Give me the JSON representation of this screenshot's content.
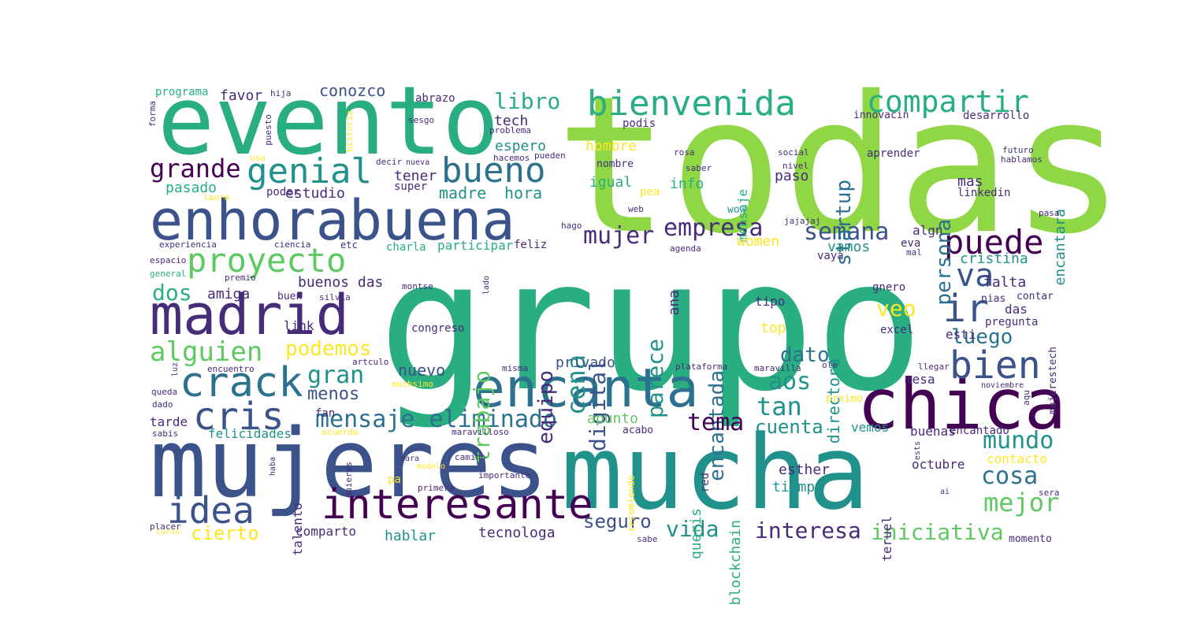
{
  "palette": {
    "purple": "#440154",
    "indigo": "#472c7a",
    "blue": "#3b528b",
    "steel": "#2c728e",
    "teal": "#21918c",
    "sea": "#28ae80",
    "green": "#5ec962",
    "lime": "#8fd744",
    "yellow": "#fde725"
  },
  "words": [
    {
      "text": "grupo",
      "size": "xxxl",
      "color": "sea"
    },
    {
      "text": "todas",
      "size": "xxxl",
      "color": "lime"
    },
    {
      "text": "mujeres",
      "size": "xxl",
      "color": "blue"
    },
    {
      "text": "mucha",
      "size": "xxl",
      "color": "teal"
    },
    {
      "text": "evento",
      "size": "xl",
      "color": "sea"
    },
    {
      "text": "enhorabuena",
      "size": "l",
      "color": "blue"
    },
    {
      "text": "encanta",
      "size": "l",
      "color": "steel"
    },
    {
      "text": "chica",
      "size": "l",
      "color": "purple"
    },
    {
      "text": "madrid",
      "size": "l",
      "color": "indigo"
    },
    {
      "text": "proyecto",
      "size": "m",
      "color": "green"
    },
    {
      "text": "bienvenida",
      "size": "m",
      "color": "sea"
    },
    {
      "text": "interesante",
      "size": "m",
      "color": "purple"
    },
    {
      "text": "crack",
      "size": "m",
      "color": "steel"
    },
    {
      "text": "cris",
      "size": "m",
      "color": "blue"
    },
    {
      "text": "idea",
      "size": "m",
      "color": "blue"
    },
    {
      "text": "bien",
      "size": "m",
      "color": "blue"
    },
    {
      "text": "genial",
      "size": "m",
      "color": "teal"
    },
    {
      "text": "bueno",
      "size": "m",
      "color": "steel"
    },
    {
      "text": "compartir",
      "size": "m",
      "color": "sea"
    },
    {
      "text": "puede",
      "size": "m",
      "color": "purple"
    },
    {
      "text": "ir",
      "size": "m",
      "color": "blue"
    },
    {
      "text": "va",
      "size": "m",
      "color": "blue"
    },
    {
      "text": "alguien",
      "size": "s",
      "color": "green"
    },
    {
      "text": "mensaje eliminado",
      "size": "s",
      "color": "steel"
    },
    {
      "text": "grande",
      "size": "s",
      "color": "purple"
    },
    {
      "text": "semana",
      "size": "s",
      "color": "blue"
    },
    {
      "text": "empresa",
      "size": "s",
      "color": "indigo"
    },
    {
      "text": "mujer",
      "size": "s",
      "color": "indigo"
    },
    {
      "text": "libro",
      "size": "s",
      "color": "sea"
    },
    {
      "text": "persona",
      "size": "s",
      "color": "steel"
    },
    {
      "text": "trabajo",
      "size": "s",
      "color": "green"
    },
    {
      "text": "cena",
      "size": "s",
      "color": "teal"
    },
    {
      "text": "digital",
      "size": "s",
      "color": "blue"
    },
    {
      "text": "equipo",
      "size": "s",
      "color": "indigo"
    },
    {
      "text": "parece",
      "size": "s",
      "color": "teal"
    },
    {
      "text": "encantada",
      "size": "s",
      "color": "steel"
    },
    {
      "text": "startup",
      "size": "s",
      "color": "steel"
    },
    {
      "text": "mundo",
      "size": "s",
      "color": "teal"
    },
    {
      "text": "cosa",
      "size": "s",
      "color": "steel"
    },
    {
      "text": "mejor",
      "size": "s",
      "color": "green"
    },
    {
      "text": "tema",
      "size": "s",
      "color": "purple"
    },
    {
      "text": "vida",
      "size": "s",
      "color": "teal"
    },
    {
      "text": "gran",
      "size": "s",
      "color": "teal"
    },
    {
      "text": "tan",
      "size": "s",
      "color": "teal"
    },
    {
      "text": "aos",
      "size": "s",
      "color": "teal"
    },
    {
      "text": "dato",
      "size": "s",
      "color": "steel"
    },
    {
      "text": "luego",
      "size": "s",
      "color": "steel"
    },
    {
      "text": "veo",
      "size": "s",
      "color": "yellow"
    },
    {
      "text": "podemos",
      "size": "s",
      "color": "yellow"
    },
    {
      "text": "dos",
      "size": "s",
      "color": "sea"
    },
    {
      "text": "interesa",
      "size": "s",
      "color": "indigo"
    },
    {
      "text": "iniciativa",
      "size": "s",
      "color": "green"
    },
    {
      "text": "seguro",
      "size": "s",
      "color": "blue"
    },
    {
      "text": "cierto",
      "size": "s",
      "color": "yellow"
    },
    {
      "text": "cuenta",
      "size": "s",
      "color": "teal"
    },
    {
      "text": "menos",
      "size": "xs",
      "color": "blue"
    },
    {
      "text": "nuevo",
      "size": "xs",
      "color": "blue"
    },
    {
      "text": "conozco",
      "size": "xs",
      "color": "blue"
    },
    {
      "text": "favor",
      "size": "xs",
      "color": "indigo"
    },
    {
      "text": "pasado",
      "size": "xs",
      "color": "sea"
    },
    {
      "text": "estudio",
      "size": "xs",
      "color": "indigo"
    },
    {
      "text": "madre",
      "size": "xs",
      "color": "teal"
    },
    {
      "text": "hora",
      "size": "xs",
      "color": "teal"
    },
    {
      "text": "tener",
      "size": "xs",
      "color": "indigo"
    },
    {
      "text": "tech",
      "size": "xs",
      "color": "indigo"
    },
    {
      "text": "espero",
      "size": "xs",
      "color": "teal"
    },
    {
      "text": "hombre",
      "size": "xs",
      "color": "yellow"
    },
    {
      "text": "igual",
      "size": "xs",
      "color": "sea"
    },
    {
      "text": "info",
      "size": "xs",
      "color": "sea"
    },
    {
      "text": "mensaje",
      "size": "xs",
      "color": "sea"
    },
    {
      "text": "paso",
      "size": "xs",
      "color": "indigo"
    },
    {
      "text": "mas",
      "size": "xs",
      "color": "indigo"
    },
    {
      "text": "encantara",
      "size": "xs",
      "color": "teal"
    },
    {
      "text": "women",
      "size": "xs",
      "color": "yellow"
    },
    {
      "text": "vamos",
      "size": "xs",
      "color": "teal"
    },
    {
      "text": "algn",
      "size": "xs",
      "color": "indigo"
    },
    {
      "text": "cristina",
      "size": "xs",
      "color": "teal"
    },
    {
      "text": "ana",
      "size": "xs",
      "color": "indigo"
    },
    {
      "text": "directora",
      "size": "xs",
      "color": "teal"
    },
    {
      "text": "falta",
      "size": "xs",
      "color": "indigo"
    },
    {
      "text": "das",
      "size": "xs",
      "color": "indigo"
    },
    {
      "text": "esti",
      "size": "xs",
      "color": "indigo"
    },
    {
      "text": "buenos das",
      "size": "xs",
      "color": "indigo"
    },
    {
      "text": "amiga",
      "size": "xs",
      "color": "indigo"
    },
    {
      "text": "privado",
      "size": "xs",
      "color": "blue"
    },
    {
      "text": "link",
      "size": "xs",
      "color": "indigo"
    },
    {
      "text": "apunto",
      "size": "xs",
      "color": "green"
    },
    {
      "text": "top",
      "size": "xs",
      "color": "yellow"
    },
    {
      "text": "tipo",
      "size": "xs",
      "color": "indigo"
    },
    {
      "text": "mesa",
      "size": "xs",
      "color": "indigo"
    },
    {
      "text": "felicidades",
      "size": "xs",
      "color": "teal"
    },
    {
      "text": "tarde",
      "size": "xs",
      "color": "indigo"
    },
    {
      "text": "fan",
      "size": "xs",
      "color": "indigo"
    },
    {
      "text": "queris",
      "size": "xs",
      "color": "sea"
    },
    {
      "text": "blockchain",
      "size": "xs",
      "color": "sea"
    },
    {
      "text": "vemos",
      "size": "xs",
      "color": "teal"
    },
    {
      "text": "buenas",
      "size": "xs",
      "color": "indigo"
    },
    {
      "text": "contacto",
      "size": "xs",
      "color": "yellow"
    },
    {
      "text": "esther",
      "size": "xs",
      "color": "indigo"
    },
    {
      "text": "tiempo",
      "size": "xs",
      "color": "teal"
    },
    {
      "text": "octubre",
      "size": "xs",
      "color": "indigo"
    },
    {
      "text": "comparto",
      "size": "xs",
      "color": "indigo"
    },
    {
      "text": "hablar",
      "size": "xs",
      "color": "teal"
    },
    {
      "text": "tecnologa",
      "size": "xs",
      "color": "indigo"
    },
    {
      "text": "talento",
      "size": "xs",
      "color": "indigo"
    },
    {
      "text": "teruel",
      "size": "xs",
      "color": "indigo"
    },
    {
      "text": "encantado",
      "size": "xs",
      "color": "indigo"
    },
    {
      "text": "participar",
      "size": "xs",
      "color": "sea"
    },
    {
      "text": "charla",
      "size": "xxs",
      "color": "sea"
    },
    {
      "text": "feliz",
      "size": "xxs",
      "color": "indigo"
    },
    {
      "text": "aprender",
      "size": "xxs",
      "color": "indigo"
    },
    {
      "text": "linkedin",
      "size": "xxs",
      "color": "indigo"
    },
    {
      "text": "congreso",
      "size": "xxs",
      "color": "indigo"
    },
    {
      "text": "pregunta",
      "size": "xxs",
      "color": "indigo"
    },
    {
      "text": "contar",
      "size": "xxs",
      "color": "indigo"
    },
    {
      "text": "nias",
      "size": "xxs",
      "color": "indigo"
    },
    {
      "text": "excel",
      "size": "xxs",
      "color": "indigo"
    },
    {
      "text": "gnero",
      "size": "xxs",
      "color": "indigo"
    },
    {
      "text": "abrazo",
      "size": "xxs",
      "color": "indigo"
    },
    {
      "text": "programa",
      "size": "xxs",
      "color": "sea"
    },
    {
      "text": "hija",
      "size": "xxs",
      "color": "indigo"
    },
    {
      "text": "podis",
      "size": "xxs",
      "color": "indigo"
    },
    {
      "text": "innovacin",
      "size": "xxs",
      "color": "indigo"
    },
    {
      "text": "desarrollo",
      "size": "xxs",
      "color": "indigo"
    },
    {
      "text": "problema",
      "size": "xxs",
      "color": "indigo"
    },
    {
      "text": "hacemos",
      "size": "xxs",
      "color": "indigo"
    },
    {
      "text": "pueden",
      "size": "xxs",
      "color": "indigo"
    },
    {
      "text": "nombre",
      "size": "xxs",
      "color": "indigo"
    },
    {
      "text": "super",
      "size": "xxs",
      "color": "indigo"
    },
    {
      "text": "poder",
      "size": "xxs",
      "color": "indigo"
    },
    {
      "text": "pea",
      "size": "xxs",
      "color": "yellow"
    },
    {
      "text": "wow",
      "size": "xxs",
      "color": "teal"
    },
    {
      "text": "vaya",
      "size": "xxs",
      "color": "indigo"
    },
    {
      "text": "eva",
      "size": "xxs",
      "color": "indigo"
    },
    {
      "text": "buen",
      "size": "xxs",
      "color": "indigo"
    },
    {
      "text": "silvia",
      "size": "xxs",
      "color": "indigo"
    },
    {
      "text": "pa",
      "size": "xxs",
      "color": "yellow"
    },
    {
      "text": "red",
      "size": "xxs",
      "color": "indigo"
    },
    {
      "text": "acabo",
      "size": "xxs",
      "color": "indigo"
    },
    {
      "text": "prximo",
      "size": "xxs",
      "color": "yellow"
    },
    {
      "text": "recomiendo",
      "size": "xxs",
      "color": "yellow"
    },
    {
      "text": "momento",
      "size": "xxs",
      "color": "indigo"
    },
    {
      "text": "mujerestech",
      "size": "xxs",
      "color": "indigo"
    },
    {
      "text": "experiencia",
      "size": "tiny",
      "color": "indigo"
    },
    {
      "text": "espacio",
      "size": "tiny",
      "color": "indigo"
    },
    {
      "text": "general",
      "size": "tiny",
      "color": "sea"
    },
    {
      "text": "premio",
      "size": "tiny",
      "color": "indigo"
    },
    {
      "text": "forma",
      "size": "tiny",
      "color": "indigo"
    },
    {
      "text": "puesto",
      "size": "tiny",
      "color": "indigo"
    },
    {
      "text": "historia",
      "size": "tiny",
      "color": "yellow"
    },
    {
      "text": "sesgo",
      "size": "tiny",
      "color": "indigo"
    },
    {
      "text": "uso",
      "size": "tiny",
      "color": "yellow"
    },
    {
      "text": "laura",
      "size": "tiny",
      "color": "yellow"
    },
    {
      "text": "decir",
      "size": "tiny",
      "color": "indigo"
    },
    {
      "text": "nueva",
      "size": "tiny",
      "color": "indigo"
    },
    {
      "text": "rosa",
      "size": "tiny",
      "color": "indigo"
    },
    {
      "text": "saber",
      "size": "tiny",
      "color": "indigo"
    },
    {
      "text": "social",
      "size": "tiny",
      "color": "indigo"
    },
    {
      "text": "nivel",
      "size": "tiny",
      "color": "indigo"
    },
    {
      "text": "futuro",
      "size": "tiny",
      "color": "indigo"
    },
    {
      "text": "hablamos",
      "size": "tiny",
      "color": "indigo"
    },
    {
      "text": "web",
      "size": "tiny",
      "color": "indigo"
    },
    {
      "text": "hago",
      "size": "tiny",
      "color": "indigo"
    },
    {
      "text": "agenda",
      "size": "tiny",
      "color": "indigo"
    },
    {
      "text": "jajajaj",
      "size": "tiny",
      "color": "indigo"
    },
    {
      "text": "pasa",
      "size": "tiny",
      "color": "indigo"
    },
    {
      "text": "ciencia",
      "size": "tiny",
      "color": "indigo"
    },
    {
      "text": "etc",
      "size": "tiny",
      "color": "indigo"
    },
    {
      "text": "mal",
      "size": "tiny",
      "color": "indigo"
    },
    {
      "text": "montse",
      "size": "tiny",
      "color": "indigo"
    },
    {
      "text": "lado",
      "size": "tiny",
      "color": "indigo"
    },
    {
      "text": "luz",
      "size": "tiny",
      "color": "indigo"
    },
    {
      "text": "encuentro",
      "size": "tiny",
      "color": "indigo"
    },
    {
      "text": "artculo",
      "size": "tiny",
      "color": "indigo"
    },
    {
      "text": "misma",
      "size": "tiny",
      "color": "indigo"
    },
    {
      "text": "plataforma",
      "size": "tiny",
      "color": "indigo"
    },
    {
      "text": "maravilla",
      "size": "tiny",
      "color": "indigo"
    },
    {
      "text": "ole",
      "size": "tiny",
      "color": "indigo"
    },
    {
      "text": "llegar",
      "size": "tiny",
      "color": "indigo"
    },
    {
      "text": "queda",
      "size": "tiny",
      "color": "indigo"
    },
    {
      "text": "muchsimo",
      "size": "tiny",
      "color": "yellow"
    },
    {
      "text": "noviembre",
      "size": "tiny",
      "color": "indigo"
    },
    {
      "text": "dado",
      "size": "tiny",
      "color": "indigo"
    },
    {
      "text": "aqu",
      "size": "tiny",
      "color": "indigo"
    },
    {
      "text": "sabis",
      "size": "tiny",
      "color": "indigo"
    },
    {
      "text": "acuerdo",
      "size": "tiny",
      "color": "yellow"
    },
    {
      "text": "maravilloso",
      "size": "tiny",
      "color": "indigo"
    },
    {
      "text": "camino",
      "size": "tiny",
      "color": "indigo"
    },
    {
      "text": "mara",
      "size": "tiny",
      "color": "indigo"
    },
    {
      "text": "ests",
      "size": "tiny",
      "color": "indigo"
    },
    {
      "text": "haba",
      "size": "tiny",
      "color": "indigo"
    },
    {
      "text": "quieres",
      "size": "tiny",
      "color": "indigo"
    },
    {
      "text": "modelo",
      "size": "tiny",
      "color": "yellow"
    },
    {
      "text": "importante",
      "size": "tiny",
      "color": "indigo"
    },
    {
      "text": "primera",
      "size": "tiny",
      "color": "indigo"
    },
    {
      "text": "ai",
      "size": "tiny",
      "color": "indigo"
    },
    {
      "text": "sera",
      "size": "tiny",
      "color": "indigo"
    },
    {
      "text": "placer",
      "size": "tiny",
      "color": "indigo"
    },
    {
      "text": "curso",
      "size": "tiny",
      "color": "yellow"
    },
    {
      "text": "sabe",
      "size": "tiny",
      "color": "indigo"
    }
  ]
}
